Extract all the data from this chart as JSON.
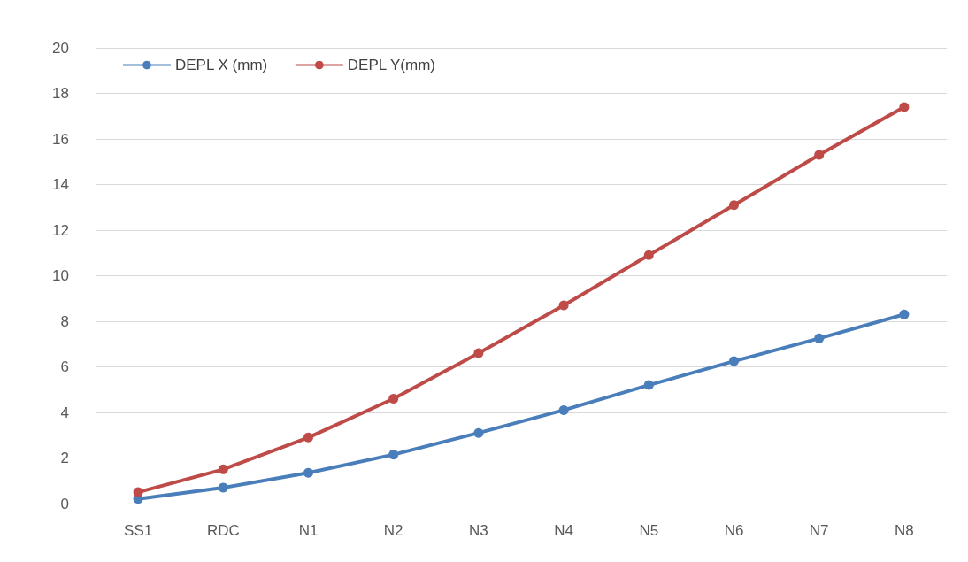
{
  "chart_data": {
    "type": "line",
    "categories": [
      "SS1",
      "RDC",
      "N1",
      "N2",
      "N3",
      "N4",
      "N5",
      "N6",
      "N7",
      "N8"
    ],
    "series": [
      {
        "name": "DEPL X (mm)",
        "color": "#4a7ebb",
        "values": [
          0.2,
          0.7,
          1.35,
          2.15,
          3.1,
          4.1,
          5.2,
          6.25,
          7.25,
          8.3
        ]
      },
      {
        "name": "DEPL Y(mm)",
        "color": "#be4b48",
        "values": [
          0.5,
          1.5,
          2.9,
          4.6,
          6.6,
          8.7,
          10.9,
          13.1,
          15.3,
          17.4
        ]
      }
    ],
    "ylim": [
      0,
      20
    ],
    "yticks": [
      0,
      2,
      4,
      6,
      8,
      10,
      12,
      14,
      16,
      18,
      20
    ],
    "grid": "y",
    "legend": "top left",
    "marker": "circle",
    "line_style": "solid"
  }
}
